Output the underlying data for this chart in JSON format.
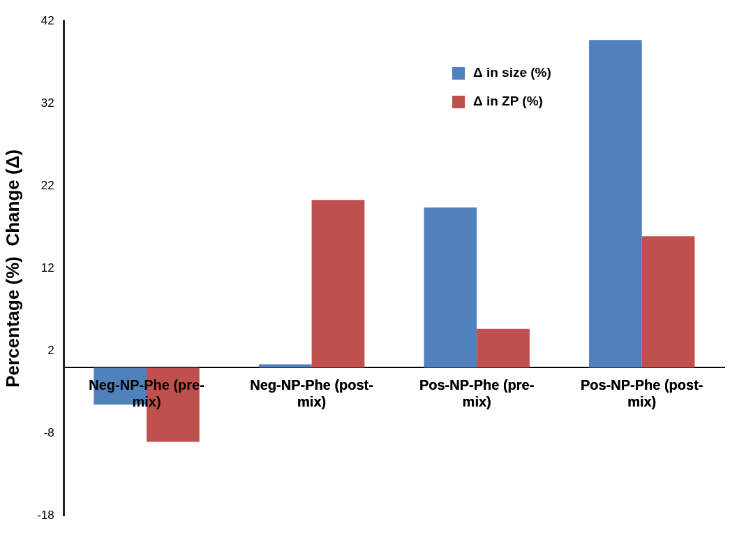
{
  "chart_data": {
    "type": "bar",
    "ylabel": "Percentage (%)  Change (Δ)",
    "categories": [
      "Neg-NP-Phe (pre-mix)",
      "Neg-NP-Phe (post-mix)",
      "Pos-NP-Phe (pre-mix)",
      "Pos-NP-Phe (post-mix)"
    ],
    "series": [
      {
        "name": "Δ in size (%)",
        "color": "#4f81bd",
        "values": [
          -4.5,
          0.4,
          19.4,
          39.7
        ]
      },
      {
        "name": "Δ in ZP (%)",
        "color": "#c0504d",
        "values": [
          -9.0,
          20.3,
          4.7,
          15.9
        ]
      }
    ],
    "ylim": [
      -18,
      42
    ],
    "yticks": [
      -18,
      -8,
      2,
      12,
      22,
      32,
      42
    ],
    "grid": false,
    "legend": "top right"
  }
}
